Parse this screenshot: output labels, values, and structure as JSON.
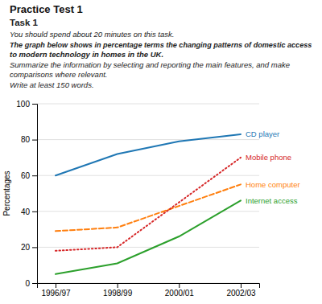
{
  "chart_data": {
    "type": "line",
    "title": "Practice Test 1",
    "subtitle": [
      "Task 1",
      "You should spend about 20 minutes on this task.",
      "The graph below shows in percentage terms the changing patterns of domestic access",
      "to modern technology in homes in the UK.",
      "Summarize the information by selecting and reporting the main features, and make",
      "comparisons where relevant.",
      "Write at least 150 words."
    ],
    "categories": [
      "1996/97",
      "1998/99",
      "2000/01",
      "2002/03"
    ],
    "series": [
      {
        "name": "CD player",
        "values": [
          60,
          72,
          79,
          83
        ],
        "line_style": "solid"
      },
      {
        "name": "Home computer",
        "values": [
          29,
          31,
          43,
          55
        ],
        "line_style": "dashed"
      },
      {
        "name": "Internet access",
        "values": [
          5,
          11,
          26,
          46
        ],
        "line_style": "solid"
      },
      {
        "name": "Mobile phone",
        "values": [
          18,
          20,
          45,
          70
        ],
        "line_style": "dotted"
      }
    ],
    "ylabel": "Percentages",
    "ylim": [
      0,
      100
    ],
    "yticks": [
      0,
      20,
      40,
      60,
      80,
      100
    ],
    "grid": true
  }
}
